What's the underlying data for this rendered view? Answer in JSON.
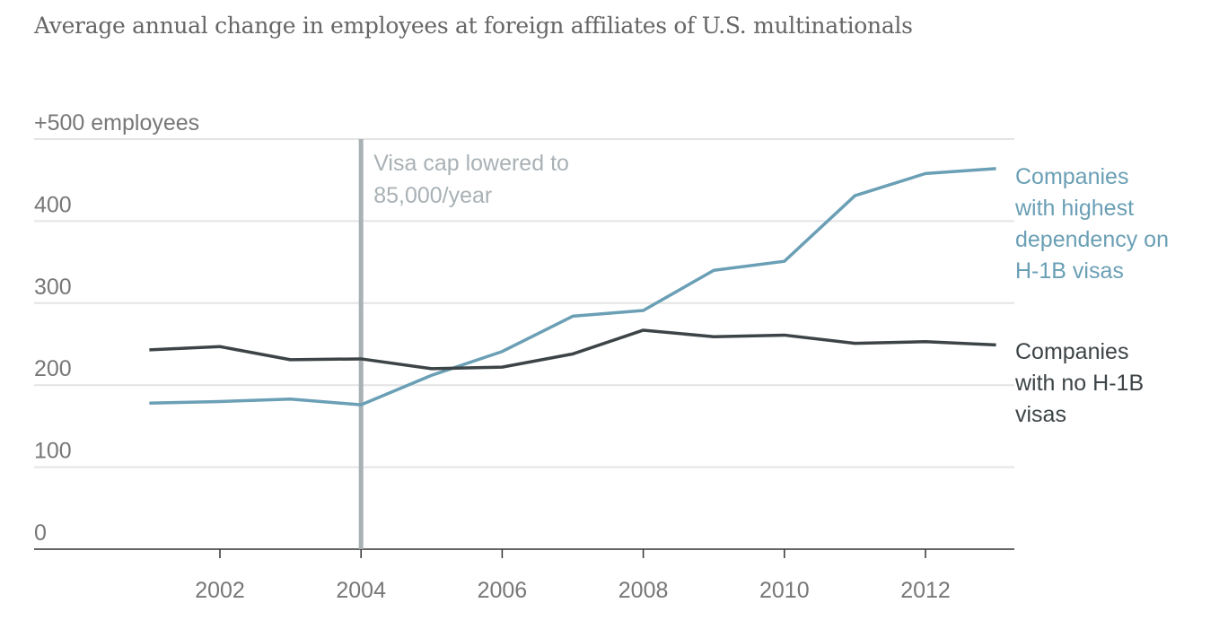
{
  "title": "Average annual change in employees at foreign affiliates of U.S. multinationals",
  "chart_data": {
    "type": "line",
    "title": "Average annual change in employees at foreign affiliates of U.S. multinationals",
    "ylabel": "",
    "ylim": [
      0,
      500
    ],
    "yticks": [
      0,
      100,
      200,
      300,
      400,
      500
    ],
    "ytick_labels": [
      "0",
      "100",
      "200",
      "300",
      "400",
      "+500 employees"
    ],
    "xlim": [
      2000,
      2013
    ],
    "xticks": [
      2002,
      2004,
      2006,
      2008,
      2010,
      2012
    ],
    "xtick_labels": [
      "2002",
      "2004",
      "2006",
      "2008",
      "2010",
      "2012"
    ],
    "grid": true,
    "x": [
      2001,
      2002,
      2003,
      2004,
      2005,
      2006,
      2007,
      2008,
      2009,
      2010,
      2011,
      2012,
      2013
    ],
    "series": [
      {
        "name": "Companies with highest dependency on H-1B visas",
        "label_lines": [
          "Companies",
          "with highest",
          "dependency on",
          "H-1B visas"
        ],
        "color": "#6a9fb5",
        "values": [
          178,
          180,
          183,
          176,
          212,
          241,
          284,
          291,
          340,
          351,
          431,
          458,
          464
        ]
      },
      {
        "name": "Companies with no H-1B visas",
        "label_lines": [
          "Companies",
          "with no H-1B",
          "visas"
        ],
        "color": "#3d4447",
        "values": [
          243,
          247,
          231,
          232,
          220,
          222,
          238,
          267,
          259,
          261,
          251,
          253,
          249
        ]
      }
    ],
    "annotation": {
      "x": 2004,
      "lines": [
        "Visa cap lowered to",
        "85,000/year"
      ],
      "color": "#a9b1b5"
    }
  }
}
